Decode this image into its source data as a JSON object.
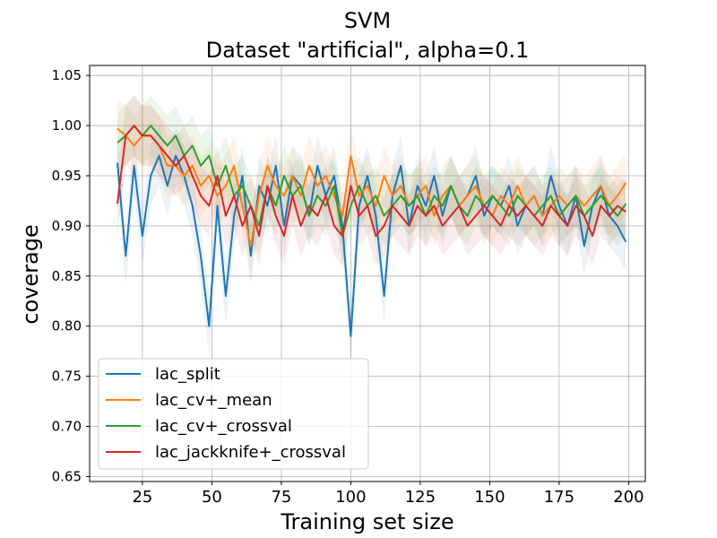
{
  "chart_data": {
    "type": "line",
    "title": "SVM",
    "subtitle": "Dataset \"artificial\", alpha=0.1",
    "xlabel": "Training set size",
    "ylabel": "coverage",
    "xlim": [
      6,
      206
    ],
    "ylim": [
      0.645,
      1.06
    ],
    "xticks": [
      {
        "value": 25,
        "label": "25"
      },
      {
        "value": 50,
        "label": "50"
      },
      {
        "value": 75,
        "label": "75"
      },
      {
        "value": 100,
        "label": "100"
      },
      {
        "value": 125,
        "label": "125"
      },
      {
        "value": 150,
        "label": "150"
      },
      {
        "value": 175,
        "label": "175"
      },
      {
        "value": 200,
        "label": "200"
      }
    ],
    "yticks": [
      {
        "value": 0.65,
        "label": "0.65"
      },
      {
        "value": 0.7,
        "label": "0.70"
      },
      {
        "value": 0.75,
        "label": "0.75"
      },
      {
        "value": 0.8,
        "label": "0.80"
      },
      {
        "value": 0.85,
        "label": "0.85"
      },
      {
        "value": 0.9,
        "label": "0.90"
      },
      {
        "value": 0.95,
        "label": "0.95"
      },
      {
        "value": 1.0,
        "label": "1.00"
      },
      {
        "value": 1.05,
        "label": "1.05"
      }
    ],
    "grid": true,
    "legend_position": "lower-left",
    "band_halfwidth": 0.03,
    "x": [
      16,
      19,
      22,
      25,
      28,
      31,
      34,
      37,
      40,
      43,
      46,
      49,
      52,
      55,
      58,
      61,
      64,
      67,
      70,
      73,
      76,
      79,
      82,
      85,
      88,
      91,
      94,
      97,
      100,
      103,
      106,
      109,
      112,
      115,
      118,
      121,
      124,
      127,
      130,
      133,
      136,
      139,
      142,
      145,
      148,
      151,
      154,
      157,
      160,
      163,
      166,
      169,
      172,
      175,
      178,
      181,
      184,
      187,
      190,
      193,
      196,
      199
    ],
    "series": [
      {
        "name": "lac_split",
        "color": "#1f77b4",
        "values": [
          0.963,
          0.87,
          0.96,
          0.89,
          0.95,
          0.97,
          0.94,
          0.97,
          0.95,
          0.92,
          0.87,
          0.8,
          0.92,
          0.83,
          0.91,
          0.95,
          0.87,
          0.94,
          0.92,
          0.96,
          0.9,
          0.95,
          0.94,
          0.91,
          0.96,
          0.93,
          0.95,
          0.9,
          0.79,
          0.92,
          0.95,
          0.91,
          0.83,
          0.93,
          0.96,
          0.9,
          0.94,
          0.92,
          0.95,
          0.91,
          0.94,
          0.92,
          0.93,
          0.95,
          0.91,
          0.93,
          0.92,
          0.94,
          0.9,
          0.92,
          0.93,
          0.91,
          0.95,
          0.92,
          0.9,
          0.93,
          0.88,
          0.92,
          0.94,
          0.91,
          0.9,
          0.884
        ]
      },
      {
        "name": "lac_cv+_mean",
        "color": "#ff7f0e",
        "values": [
          0.997,
          0.99,
          0.98,
          0.99,
          0.99,
          0.98,
          0.96,
          0.96,
          0.95,
          0.96,
          0.94,
          0.95,
          0.93,
          0.94,
          0.96,
          0.92,
          0.88,
          0.93,
          0.96,
          0.94,
          0.93,
          0.95,
          0.93,
          0.96,
          0.94,
          0.95,
          0.93,
          0.91,
          0.97,
          0.93,
          0.94,
          0.92,
          0.95,
          0.93,
          0.94,
          0.92,
          0.93,
          0.94,
          0.91,
          0.93,
          0.94,
          0.92,
          0.93,
          0.94,
          0.92,
          0.91,
          0.93,
          0.92,
          0.94,
          0.92,
          0.93,
          0.91,
          0.92,
          0.93,
          0.92,
          0.93,
          0.92,
          0.93,
          0.94,
          0.92,
          0.93,
          0.943
        ]
      },
      {
        "name": "lac_cv+_crossval",
        "color": "#2ca02c",
        "values": [
          0.983,
          0.99,
          1.0,
          0.99,
          1.0,
          0.99,
          0.98,
          0.99,
          0.97,
          0.98,
          0.96,
          0.97,
          0.94,
          0.96,
          0.93,
          0.94,
          0.92,
          0.9,
          0.94,
          0.92,
          0.95,
          0.93,
          0.94,
          0.91,
          0.93,
          0.92,
          0.94,
          0.89,
          0.92,
          0.94,
          0.92,
          0.93,
          0.91,
          0.92,
          0.93,
          0.92,
          0.93,
          0.91,
          0.93,
          0.92,
          0.94,
          0.92,
          0.91,
          0.93,
          0.92,
          0.93,
          0.92,
          0.91,
          0.93,
          0.92,
          0.91,
          0.92,
          0.93,
          0.91,
          0.92,
          0.93,
          0.91,
          0.92,
          0.93,
          0.92,
          0.91,
          0.922
        ]
      },
      {
        "name": "lac_jackknife+_crossval",
        "color": "#d62728",
        "values": [
          0.922,
          0.99,
          1.0,
          0.99,
          0.99,
          0.98,
          0.97,
          0.96,
          0.97,
          0.95,
          0.93,
          0.92,
          0.95,
          0.91,
          0.93,
          0.9,
          0.92,
          0.89,
          0.94,
          0.91,
          0.89,
          0.93,
          0.9,
          0.92,
          0.91,
          0.93,
          0.9,
          0.89,
          0.94,
          0.91,
          0.92,
          0.89,
          0.9,
          0.92,
          0.91,
          0.9,
          0.92,
          0.91,
          0.92,
          0.9,
          0.91,
          0.92,
          0.9,
          0.91,
          0.92,
          0.91,
          0.9,
          0.92,
          0.91,
          0.92,
          0.91,
          0.9,
          0.92,
          0.91,
          0.9,
          0.92,
          0.91,
          0.89,
          0.92,
          0.91,
          0.92,
          0.914
        ]
      }
    ]
  }
}
